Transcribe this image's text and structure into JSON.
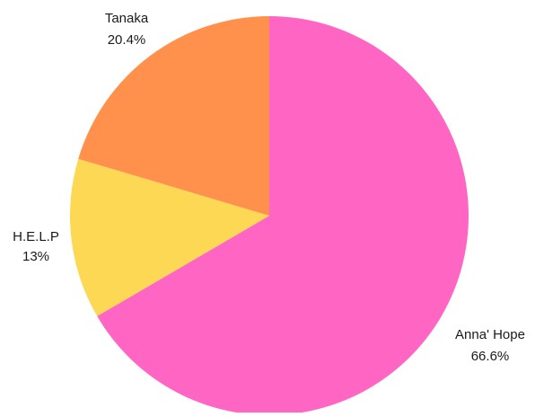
{
  "chart_data": {
    "type": "pie",
    "title": "",
    "start_angle_deg": 0,
    "direction": "clockwise",
    "slices": [
      {
        "label": "Anna' Hope",
        "value": 66.6,
        "display": "66.6%",
        "color": "#FF66C4"
      },
      {
        "label": "H.E.L.P",
        "value": 13,
        "display": "13%",
        "color": "#FCD855"
      },
      {
        "label": "Tanaka",
        "value": 20.4,
        "display": "20.4%",
        "color": "#FF914D"
      }
    ],
    "legend": "none",
    "data_labels": "outside"
  }
}
